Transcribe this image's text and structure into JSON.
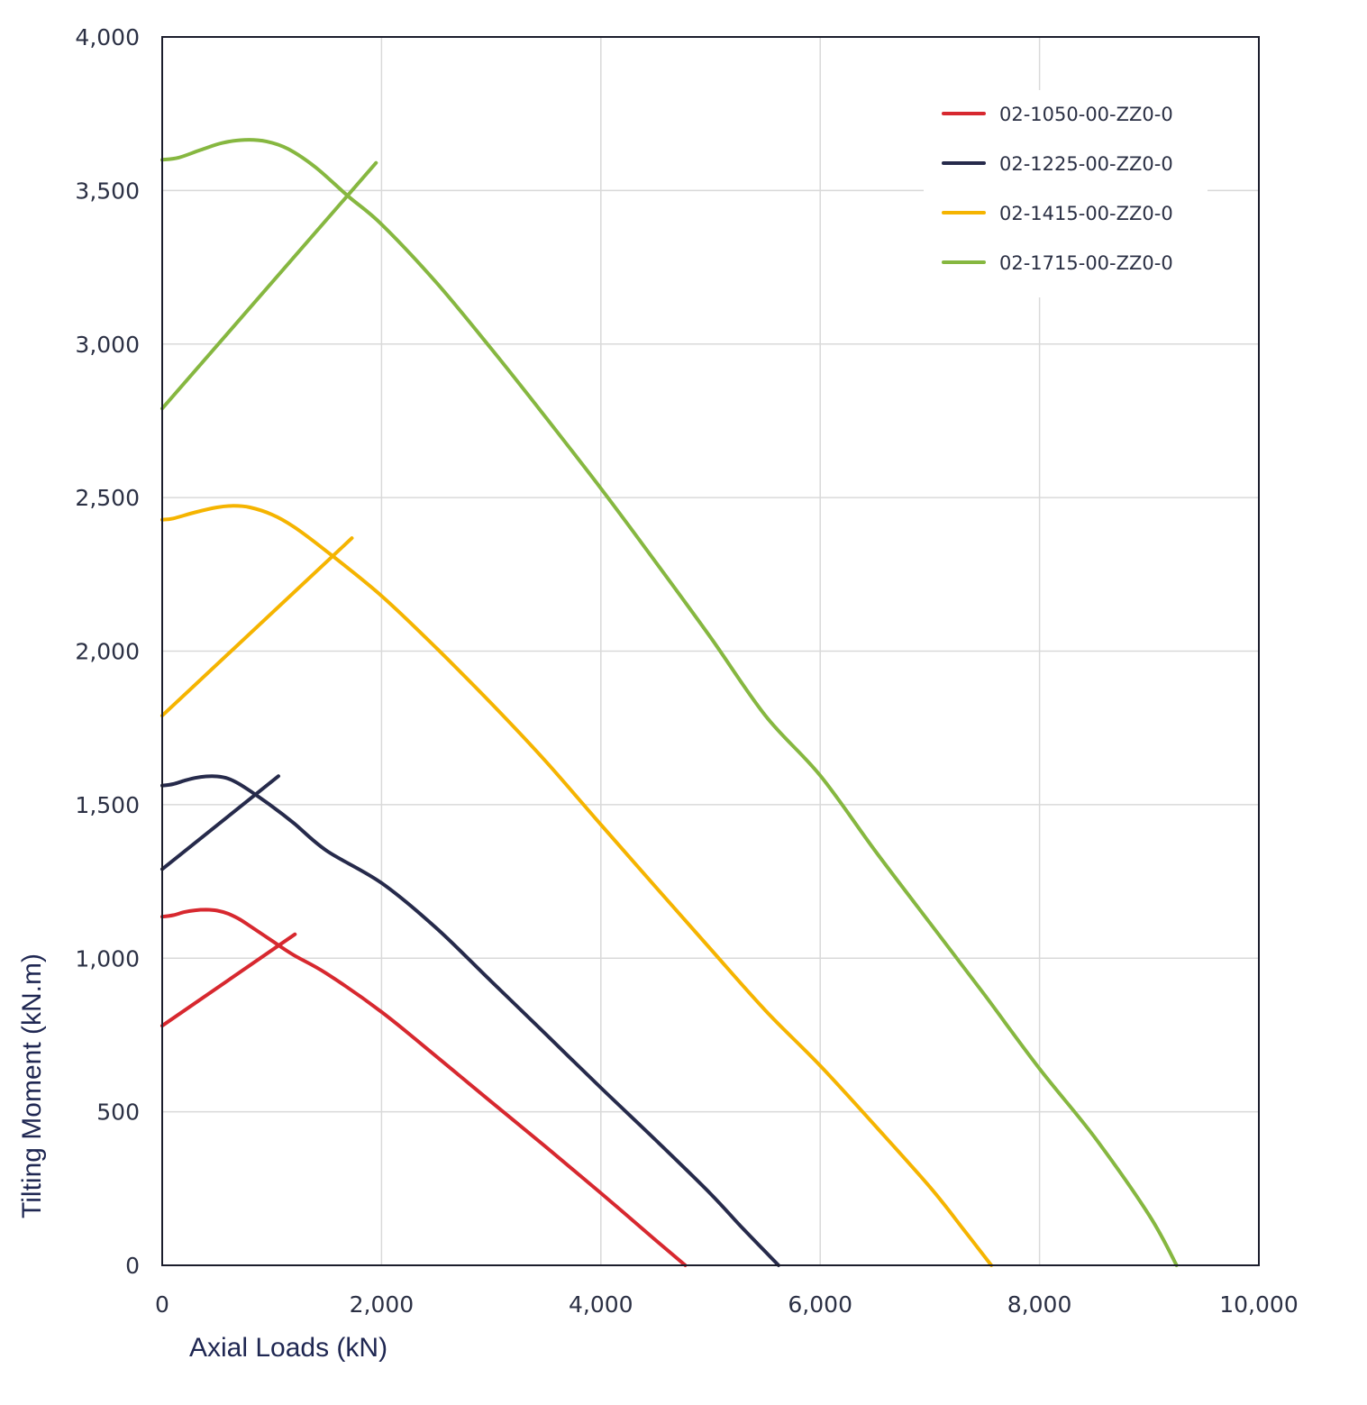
{
  "chart_data": {
    "type": "line",
    "title": "",
    "xlabel": "Axial Loads (kN)",
    "ylabel": "Tilting Moment (kN.m)",
    "xlim": [
      0,
      10000
    ],
    "ylim": [
      0,
      4000
    ],
    "x_ticks": [
      {
        "value": 0,
        "label": "0"
      },
      {
        "value": 2000,
        "label": "2,000"
      },
      {
        "value": 4000,
        "label": "4,000"
      },
      {
        "value": 6000,
        "label": "6,000"
      },
      {
        "value": 8000,
        "label": "8,000"
      },
      {
        "value": 10000,
        "label": "10,000"
      }
    ],
    "y_ticks": [
      {
        "value": 0,
        "label": "0"
      },
      {
        "value": 500,
        "label": "500"
      },
      {
        "value": 1000,
        "label": "1,000"
      },
      {
        "value": 1500,
        "label": "1,500"
      },
      {
        "value": 2000,
        "label": "2,000"
      },
      {
        "value": 2500,
        "label": "2,500"
      },
      {
        "value": 3000,
        "label": "3,000"
      },
      {
        "value": 3500,
        "label": "3,500"
      },
      {
        "value": 4000,
        "label": "4,000"
      }
    ],
    "grid": true,
    "legend_position": "top-right",
    "series": [
      {
        "name": "02-1050-00-ZZ0-0",
        "color": "#d7282f",
        "segments": [
          [
            [
              0,
              1135
            ],
            [
              100,
              1140
            ],
            [
              200,
              1150
            ],
            [
              300,
              1156
            ],
            [
              400,
              1158
            ],
            [
              500,
              1155
            ],
            [
              600,
              1145
            ],
            [
              700,
              1128
            ],
            [
              800,
              1105
            ],
            [
              1000,
              1057
            ],
            [
              1200,
              1010
            ],
            [
              1500,
              950
            ],
            [
              2000,
              825
            ],
            [
              2500,
              680
            ],
            [
              3000,
              532
            ],
            [
              3500,
              385
            ],
            [
              4000,
              235
            ],
            [
              4500,
              82
            ],
            [
              4770,
              0
            ]
          ],
          [
            [
              0,
              780
            ],
            [
              1210,
              1078
            ]
          ]
        ]
      },
      {
        "name": "02-1225-00-ZZ0-0",
        "color": "#262a4b",
        "segments": [
          [
            [
              0,
              1562
            ],
            [
              100,
              1567
            ],
            [
              200,
              1578
            ],
            [
              300,
              1587
            ],
            [
              400,
              1592
            ],
            [
              500,
              1592
            ],
            [
              600,
              1585
            ],
            [
              700,
              1568
            ],
            [
              800,
              1545
            ],
            [
              1000,
              1495
            ],
            [
              1200,
              1440
            ],
            [
              1500,
              1350
            ],
            [
              2000,
              1245
            ],
            [
              2500,
              1098
            ],
            [
              3000,
              925
            ],
            [
              3500,
              752
            ],
            [
              4000,
              578
            ],
            [
              4500,
              408
            ],
            [
              5000,
              233
            ],
            [
              5300,
              118
            ],
            [
              5620,
              0
            ]
          ],
          [
            [
              0,
              1290
            ],
            [
              1060,
              1593
            ]
          ]
        ]
      },
      {
        "name": "02-1415-00-ZZ0-0",
        "color": "#f5b400",
        "segments": [
          [
            [
              0,
              2428
            ],
            [
              100,
              2432
            ],
            [
              300,
              2452
            ],
            [
              500,
              2468
            ],
            [
              650,
              2473
            ],
            [
              800,
              2468
            ],
            [
              1000,
              2445
            ],
            [
              1200,
              2405
            ],
            [
              1500,
              2325
            ],
            [
              2000,
              2180
            ],
            [
              2500,
              2010
            ],
            [
              3000,
              1830
            ],
            [
              3500,
              1640
            ],
            [
              4000,
              1435
            ],
            [
              4500,
              1232
            ],
            [
              5000,
              1030
            ],
            [
              5500,
              830
            ],
            [
              6000,
              650
            ],
            [
              6500,
              455
            ],
            [
              7000,
              255
            ],
            [
              7300,
              120
            ],
            [
              7560,
              0
            ]
          ],
          [
            [
              0,
              1790
            ],
            [
              1730,
              2368
            ]
          ]
        ]
      },
      {
        "name": "02-1715-00-ZZ0-0",
        "color": "#86b740",
        "segments": [
          [
            [
              0,
              3600
            ],
            [
              150,
              3607
            ],
            [
              350,
              3632
            ],
            [
              550,
              3655
            ],
            [
              750,
              3665
            ],
            [
              950,
              3660
            ],
            [
              1150,
              3635
            ],
            [
              1400,
              3575
            ],
            [
              1700,
              3480
            ],
            [
              2000,
              3390
            ],
            [
              2500,
              3200
            ],
            [
              3000,
              2985
            ],
            [
              3500,
              2760
            ],
            [
              4000,
              2530
            ],
            [
              4500,
              2290
            ],
            [
              5000,
              2045
            ],
            [
              5500,
              1790
            ],
            [
              6000,
              1595
            ],
            [
              6500,
              1350
            ],
            [
              7000,
              1115
            ],
            [
              7500,
              880
            ],
            [
              8000,
              640
            ],
            [
              8500,
              418
            ],
            [
              9000,
              163
            ],
            [
              9250,
              0
            ]
          ],
          [
            [
              0,
              2790
            ],
            [
              1950,
              3590
            ]
          ]
        ]
      }
    ]
  }
}
